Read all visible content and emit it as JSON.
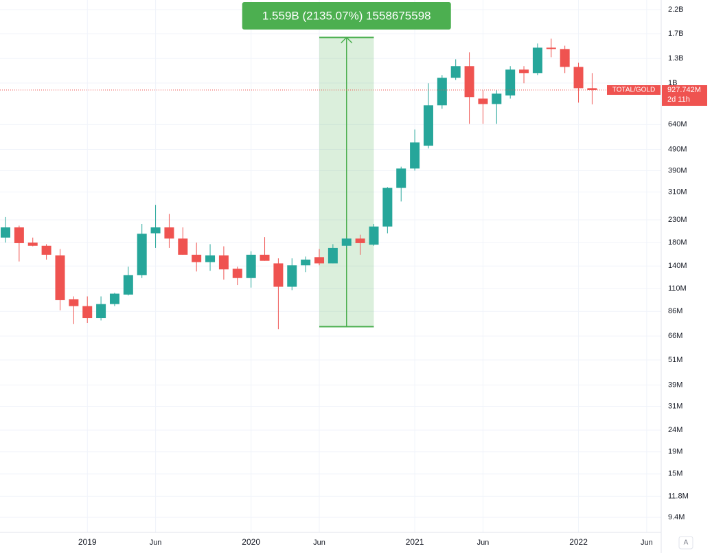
{
  "chart_data": {
    "type": "candlestick",
    "log_scale": true,
    "grid": true,
    "up_color": "#26a69a",
    "down_color": "#ef5350",
    "x": [
      "2018-07",
      "2018-08",
      "2018-09",
      "2018-10",
      "2018-11",
      "2018-12",
      "2019-01",
      "2019-02",
      "2019-03",
      "2019-04",
      "2019-05",
      "2019-06",
      "2019-07",
      "2019-08",
      "2019-09",
      "2019-10",
      "2019-11",
      "2019-12",
      "2020-01",
      "2020-02",
      "2020-03",
      "2020-04",
      "2020-05",
      "2020-06",
      "2020-07",
      "2020-08",
      "2020-09",
      "2020-10",
      "2020-11",
      "2020-12",
      "2021-01",
      "2021-02",
      "2021-03",
      "2021-04",
      "2021-05",
      "2021-06",
      "2021-07",
      "2021-08",
      "2021-09",
      "2021-10",
      "2021-11",
      "2021-12",
      "2022-01",
      "2022-02"
    ],
    "open": [
      190000000.0,
      212000000.0,
      180000000.0,
      174000000.0,
      157000000.0,
      98000000.0,
      91000000.0,
      80000000.0,
      93000000.0,
      103000000.0,
      127000000.0,
      199000000.0,
      212000000.0,
      188000000.0,
      158000000.0,
      146000000.0,
      157000000.0,
      136000000.0,
      123000000.0,
      158000000.0,
      144000000.0,
      112000000.0,
      141000000.0,
      154000000.0,
      144000000.0,
      174000000.0,
      188000000.0,
      176000000.0,
      214000000.0,
      324000000.0,
      399000000.0,
      510000000.0,
      787000000.0,
      1058000000.0,
      1199000000.0,
      846000000.0,
      798000000.0,
      875000000.0,
      1155000000.0,
      1113000000.0,
      1462000000.0,
      1441000000.0,
      1189000000.0,
      946000000.0
    ],
    "high": [
      237000000.0,
      216000000.0,
      190000000.0,
      177000000.0,
      168000000.0,
      101000000.0,
      101000000.0,
      101000000.0,
      105000000.0,
      139000000.0,
      220000000.0,
      270000000.0,
      245000000.0,
      212000000.0,
      180000000.0,
      177000000.0,
      173000000.0,
      139000000.0,
      164000000.0,
      191000000.0,
      152000000.0,
      152000000.0,
      155000000.0,
      168000000.0,
      177000000.0,
      190000000.0,
      196000000.0,
      220000000.0,
      327000000.0,
      407000000.0,
      607000000.0,
      997000000.0,
      1089000000.0,
      1290000000.0,
      1390000000.0,
      925000000.0,
      925000000.0,
      1199000000.0,
      1199000000.0,
      1529000000.0,
      1610000000.0,
      1493000000.0,
      1243000000.0,
      1113000000.0
    ],
    "low": [
      180000000.0,
      147000000.0,
      173000000.0,
      150000000.0,
      87000000.0,
      75000000.0,
      76000000.0,
      78000000.0,
      91000000.0,
      102000000.0,
      123000000.0,
      170000000.0,
      170000000.0,
      158000000.0,
      132000000.0,
      133000000.0,
      121000000.0,
      114000000.0,
      111000000.0,
      148000000.0,
      71000000.0,
      108000000.0,
      131000000.0,
      141000000.0,
      144000000.0,
      170000000.0,
      158000000.0,
      174000000.0,
      199000000.0,
      280000000.0,
      390000000.0,
      495000000.0,
      758000000.0,
      1034000000.0,
      645000000.0,
      645000000.0,
      645000000.0,
      846000000.0,
      997000000.0,
      1089000000.0,
      1319000000.0,
      1113000000.0,
      810000000.0,
      795000000.0
    ],
    "close": [
      212000000.0,
      179000000.0,
      174000000.0,
      158000000.0,
      97000000.0,
      91000000.0,
      80000000.0,
      93000000.0,
      104000000.0,
      127000000.0,
      198000000.0,
      212000000.0,
      188000000.0,
      158000000.0,
      146000000.0,
      157000000.0,
      135000000.0,
      123000000.0,
      158000000.0,
      148000000.0,
      112000000.0,
      141000000.0,
      150000000.0,
      144000000.0,
      170000000.0,
      188000000.0,
      179000000.0,
      214000000.0,
      324000000.0,
      399000000.0,
      528000000.0,
      787000000.0,
      1058000000.0,
      1199000000.0,
      860000000.0,
      798000000.0,
      892000000.0,
      1155000000.0,
      1113000000.0,
      1462000000.0,
      1441000000.0,
      1189000000.0,
      946000000.0,
      927742000.0
    ],
    "ylim": [
      8000000.0,
      2440000000.0
    ],
    "yticks": [
      {
        "value": 2200000000.0,
        "label": "2.2B"
      },
      {
        "value": 1700000000.0,
        "label": "1.7B"
      },
      {
        "value": 1300000000.0,
        "label": "1.3B"
      },
      {
        "value": 1000000000.0,
        "label": "1B"
      },
      {
        "value": 640000000.0,
        "label": "640M"
      },
      {
        "value": 490000000.0,
        "label": "490M"
      },
      {
        "value": 390000000.0,
        "label": "390M"
      },
      {
        "value": 310000000.0,
        "label": "310M"
      },
      {
        "value": 230000000.0,
        "label": "230M"
      },
      {
        "value": 180000000.0,
        "label": "180M"
      },
      {
        "value": 140000000.0,
        "label": "140M"
      },
      {
        "value": 110000000.0,
        "label": "110M"
      },
      {
        "value": 86000000.0,
        "label": "86M"
      },
      {
        "value": 66000000.0,
        "label": "66M"
      },
      {
        "value": 51000000.0,
        "label": "51M"
      },
      {
        "value": 39000000.0,
        "label": "39M"
      },
      {
        "value": 31000000.0,
        "label": "31M"
      },
      {
        "value": 24000000.0,
        "label": "24M"
      },
      {
        "value": 19000000.0,
        "label": "19M"
      },
      {
        "value": 15000000.0,
        "label": "15M"
      },
      {
        "value": 11800000.0,
        "label": "11.8M"
      },
      {
        "value": 9400000.0,
        "label": "9.4M"
      }
    ],
    "xticks": [
      {
        "value": "2019-01",
        "label": "2019"
      },
      {
        "value": "2019-06",
        "label": "Jun"
      },
      {
        "value": "2020-01",
        "label": "2020"
      },
      {
        "value": "2020-06",
        "label": "Jun"
      },
      {
        "value": "2021-01",
        "label": "2021"
      },
      {
        "value": "2021-06",
        "label": "Jun"
      },
      {
        "value": "2022-01",
        "label": "2022"
      },
      {
        "value": "2022-06",
        "label": "Jun"
      }
    ],
    "measure": {
      "label": "1.559B (2135.07%) 1558675598",
      "from": 73000000.0,
      "to": 1631700000.0,
      "start": "2020-06",
      "end": "2020-10",
      "color": "#4caf50"
    },
    "price_tag": {
      "symbol": "TOTAL/GOLD",
      "value": 927742000.0,
      "label": "927.742M",
      "countdown": "2d 11h"
    },
    "scale_button": "A"
  }
}
